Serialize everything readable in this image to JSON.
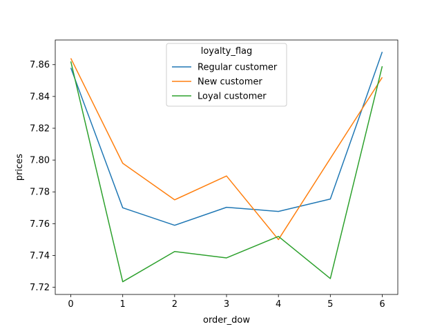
{
  "chart_data": {
    "type": "line",
    "title": "",
    "xlabel": "order_dow",
    "ylabel": "prices",
    "x": [
      0,
      1,
      2,
      3,
      4,
      5,
      6
    ],
    "xticks": [
      "0",
      "1",
      "2",
      "3",
      "4",
      "5",
      "6"
    ],
    "yticks": [
      "7.72",
      "7.74",
      "7.76",
      "7.78",
      "7.80",
      "7.82",
      "7.84",
      "7.86"
    ],
    "xlim": [
      -0.3,
      6.3
    ],
    "ylim": [
      7.7155,
      7.8755
    ],
    "grid": false,
    "legend": {
      "title": "loyalty_flag",
      "placement": "upper-center"
    },
    "series": [
      {
        "name": "Regular customer",
        "color": "#1f77b4",
        "values": [
          7.858,
          7.77,
          7.759,
          7.7703,
          7.7677,
          7.7755,
          7.868
        ]
      },
      {
        "name": "New customer",
        "color": "#ff7f0e",
        "values": [
          7.864,
          7.798,
          7.775,
          7.79,
          7.75,
          7.801,
          7.852
        ]
      },
      {
        "name": "Loyal customer",
        "color": "#2ca02c",
        "values": [
          7.862,
          7.7235,
          7.7425,
          7.7385,
          7.752,
          7.7255,
          7.859
        ]
      }
    ]
  }
}
